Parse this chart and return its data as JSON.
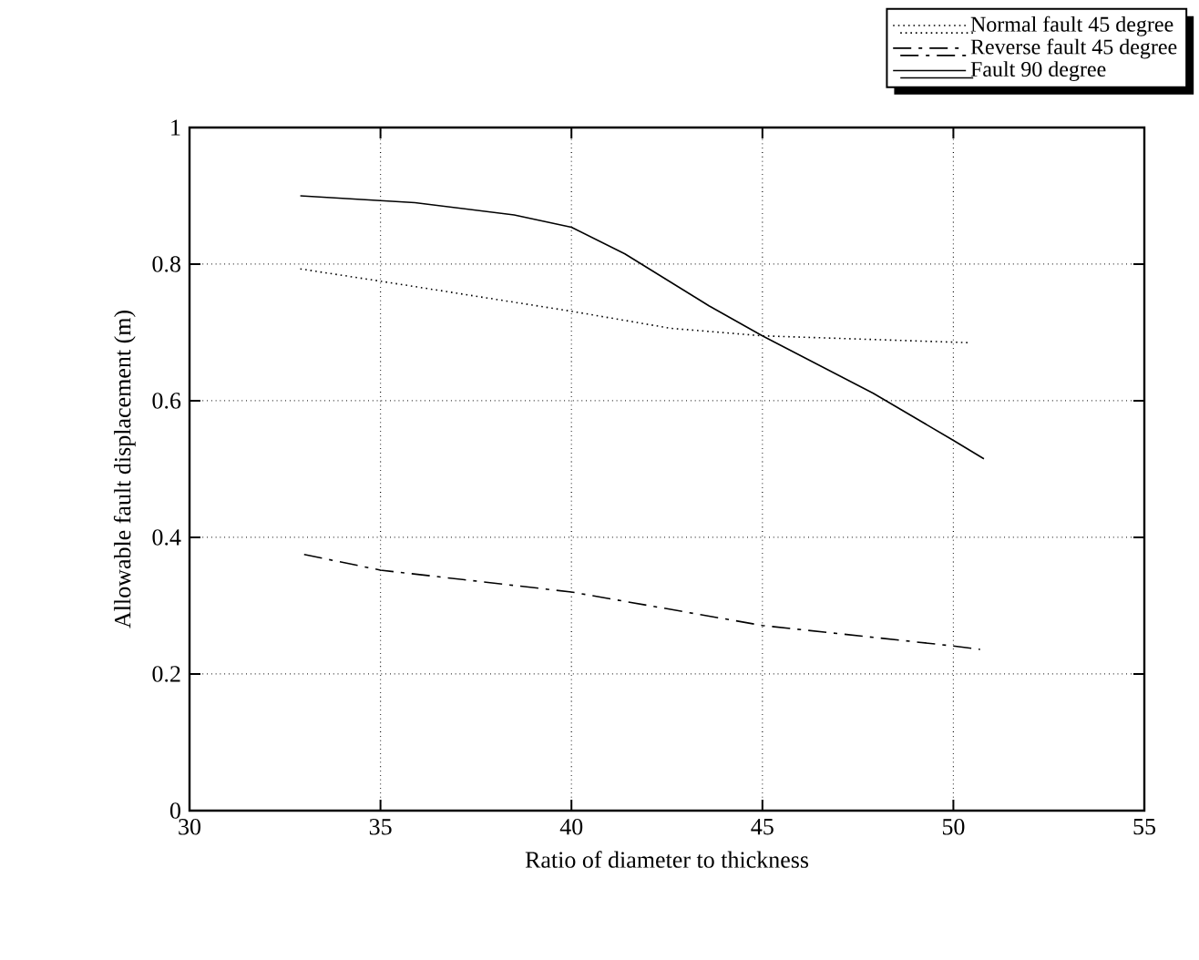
{
  "chart_data": {
    "type": "line",
    "xlabel": "Ratio of diameter to thickness",
    "ylabel": "Allowable fault displacement (m)",
    "xlim": [
      30,
      55
    ],
    "xticks": [
      30,
      35,
      40,
      45,
      50,
      55
    ],
    "ylim": [
      0,
      1
    ],
    "yticks": [
      0,
      0.2,
      0.4,
      0.6,
      0.8,
      1
    ],
    "grid": true,
    "legend": "top right",
    "marker": "none",
    "series": [
      {
        "name": "Normal fault 45 degree",
        "color": "#000000",
        "line_style": "dotted",
        "x": [
          32.9,
          35,
          40,
          42.6,
          45,
          50.4
        ],
        "values": [
          0.793,
          0.775,
          0.731,
          0.706,
          0.695,
          0.685
        ]
      },
      {
        "name": "Reverse fault 45 degree",
        "color": "#000000",
        "line_style": "dashdot",
        "x": [
          33,
          35,
          40,
          45,
          50,
          50.7
        ],
        "values": [
          0.375,
          0.352,
          0.32,
          0.271,
          0.241,
          0.236
        ]
      },
      {
        "name": "Fault 90 degree",
        "color": "#000000",
        "line_style": "solid",
        "x": [
          32.9,
          35.9,
          38.5,
          40,
          41.4,
          43.6,
          45,
          47.9,
          50,
          50.8
        ],
        "values": [
          0.9,
          0.89,
          0.872,
          0.854,
          0.815,
          0.739,
          0.695,
          0.611,
          0.542,
          0.515
        ]
      }
    ]
  }
}
